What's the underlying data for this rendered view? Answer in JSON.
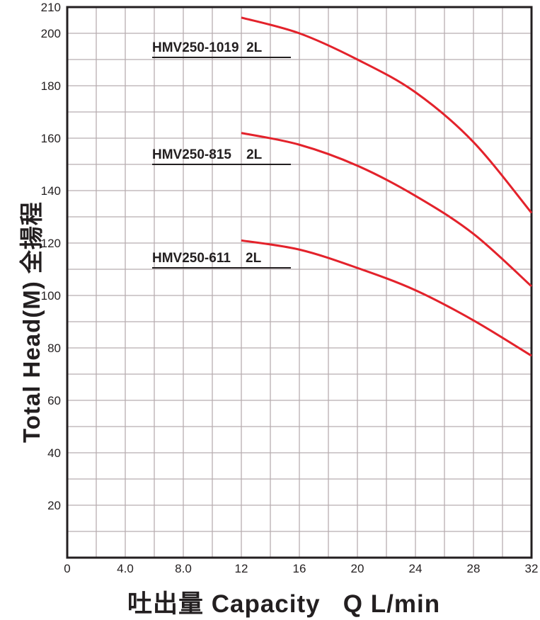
{
  "chart_data": {
    "type": "line",
    "title": "",
    "xlabel": "吐出量 Capacity   Q L/min",
    "ylabel": "Total Head(M) 全揚程",
    "xlim": [
      0,
      32
    ],
    "ylim": [
      0,
      210
    ],
    "grid": true,
    "x_ticks": [
      "0",
      "4.0",
      "8.0",
      "12",
      "16",
      "20",
      "24",
      "28",
      "32"
    ],
    "x_tick_values": [
      0,
      4,
      8,
      12,
      16,
      20,
      24,
      28,
      32
    ],
    "y_ticks": [
      "20",
      "40",
      "60",
      "80",
      "100",
      "120",
      "140",
      "160",
      "180",
      "200",
      "210"
    ],
    "y_tick_values": [
      20,
      40,
      60,
      80,
      100,
      120,
      140,
      160,
      180,
      200,
      210
    ],
    "line_color": "#e3222b",
    "series": [
      {
        "name": "HMV250-1019  2L",
        "x": [
          12,
          16,
          20,
          24,
          28,
          32
        ],
        "y": [
          206,
          200,
          190,
          177.5,
          158.5,
          131.5
        ]
      },
      {
        "name": "HMV250-815    2L",
        "x": [
          12,
          16,
          20,
          24,
          28,
          32
        ],
        "y": [
          162,
          157.5,
          149.5,
          138,
          123.5,
          103.5
        ]
      },
      {
        "name": "HMV250-611    2L",
        "x": [
          12,
          16,
          20,
          24,
          28,
          32
        ],
        "y": [
          121,
          117.5,
          110.5,
          102,
          90.5,
          77
        ]
      }
    ]
  }
}
